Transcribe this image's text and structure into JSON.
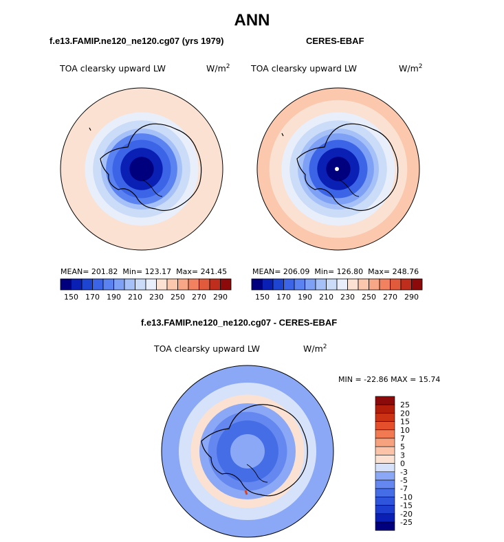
{
  "figure": {
    "title": "ANN",
    "panels": {
      "model": {
        "header": "f.e13.FAMIP.ne120_ne120.cg07 (yrs 1979)",
        "variable": "TOA clearsky upward LW",
        "units_base": "W/m",
        "units_exp": "2",
        "stats": {
          "mean_label": "MEAN=",
          "mean": "201.82",
          "min_label": "Min=",
          "min": "123.17",
          "max_label": "Max=",
          "max": "241.45"
        }
      },
      "obs": {
        "header": "CERES-EBAF",
        "variable": "TOA clearsky upward LW",
        "units_base": "W/m",
        "units_exp": "2",
        "stats": {
          "mean_label": "MEAN=",
          "mean": "206.09",
          "min_label": "Min=",
          "min": "126.80",
          "max_label": "Max=",
          "max": "248.76"
        }
      },
      "diff": {
        "header": "f.e13.FAMIP.ne120_ne120.cg07 - CERES-EBAF",
        "variable": "TOA clearsky upward LW",
        "units_base": "W/m",
        "units_exp": "2",
        "minmax": "MIN = -22.86 MAX =  15.74"
      }
    }
  },
  "chart_data": [
    {
      "type": "heatmap",
      "projection": "south polar stereographic",
      "title": "f.e13.FAMIP.ne120_ne120.cg07 (yrs 1979)",
      "variable": "TOA clearsky upward LW",
      "units": "W/m^2",
      "mean": 201.82,
      "min": 123.17,
      "max": 241.45,
      "colorbar_levels": [
        150,
        160,
        170,
        180,
        190,
        200,
        210,
        220,
        230,
        240,
        250,
        260,
        270,
        280,
        290
      ],
      "colorbar_tick_labels": [
        "150",
        "170",
        "190",
        "210",
        "230",
        "250",
        "270",
        "290"
      ],
      "colorbar_colors": [
        "#00007f",
        "#0a1fb4",
        "#1e44d2",
        "#3c64e6",
        "#5a82f0",
        "#7ea1f5",
        "#a6c1f8",
        "#cadcf8",
        "#e8eefa",
        "#fbe1d2",
        "#fbc7ad",
        "#f8a786",
        "#f2825f",
        "#e25a3c",
        "#bf2d1d",
        "#8c0a0a"
      ],
      "radial_profile": [
        {
          "r": 1.0,
          "value": 238
        },
        {
          "r": 0.85,
          "value": 232
        },
        {
          "r": 0.7,
          "value": 224
        },
        {
          "r": 0.6,
          "value": 214
        },
        {
          "r": 0.5,
          "value": 204
        },
        {
          "r": 0.44,
          "value": 188
        },
        {
          "r": 0.36,
          "value": 172
        },
        {
          "r": 0.26,
          "value": 155
        },
        {
          "r": 0.15,
          "value": 140
        }
      ]
    },
    {
      "type": "heatmap",
      "projection": "south polar stereographic",
      "title": "CERES-EBAF",
      "variable": "TOA clearsky upward LW",
      "units": "W/m^2",
      "mean": 206.09,
      "min": 126.8,
      "max": 248.76,
      "colorbar_levels": [
        150,
        160,
        170,
        180,
        190,
        200,
        210,
        220,
        230,
        240,
        250,
        260,
        270,
        280,
        290
      ],
      "colorbar_tick_labels": [
        "150",
        "170",
        "190",
        "210",
        "230",
        "250",
        "270",
        "290"
      ],
      "colorbar_colors": [
        "#00007f",
        "#0a1fb4",
        "#1e44d2",
        "#3c64e6",
        "#5a82f0",
        "#7ea1f5",
        "#a6c1f8",
        "#cadcf8",
        "#e8eefa",
        "#fbe1d2",
        "#fbc7ad",
        "#f8a786",
        "#f2825f",
        "#e25a3c",
        "#bf2d1d",
        "#8c0a0a"
      ],
      "radial_profile": [
        {
          "r": 1.0,
          "value": 244
        },
        {
          "r": 0.85,
          "value": 237
        },
        {
          "r": 0.7,
          "value": 227
        },
        {
          "r": 0.6,
          "value": 216
        },
        {
          "r": 0.5,
          "value": 206
        },
        {
          "r": 0.44,
          "value": 190
        },
        {
          "r": 0.36,
          "value": 174
        },
        {
          "r": 0.26,
          "value": 158
        },
        {
          "r": 0.15,
          "value": 142
        }
      ]
    },
    {
      "type": "heatmap",
      "projection": "south polar stereographic",
      "title": "f.e13.FAMIP.ne120_ne120.cg07 - CERES-EBAF",
      "variable": "TOA clearsky upward LW",
      "units": "W/m^2",
      "min": -22.86,
      "max": 15.74,
      "colorbar_levels": [
        -25,
        -20,
        -15,
        -10,
        -7,
        -5,
        -3,
        0,
        3,
        5,
        7,
        10,
        15,
        20,
        25
      ],
      "colorbar_tick_labels": [
        "-25",
        "-20",
        "-15",
        "-10",
        "-7",
        "-5",
        "-3",
        "0",
        "3",
        "5",
        "7",
        "10",
        "15",
        "20",
        "25"
      ],
      "colorbar_colors": [
        "#00007f",
        "#0a1fb4",
        "#1e3ed0",
        "#2e55dc",
        "#456ee6",
        "#6488ef",
        "#8aa8f5",
        "#d6e2fa",
        "#fbe1d2",
        "#fbc4a8",
        "#f7a27f",
        "#f17a52",
        "#e54f2c",
        "#cc3214",
        "#b21e0a",
        "#8c0a0a"
      ],
      "radial_profile": [
        {
          "r": 1.0,
          "value": -4
        },
        {
          "r": 0.8,
          "value": -2
        },
        {
          "r": 0.66,
          "value": 1
        },
        {
          "r": 0.56,
          "value": -4
        },
        {
          "r": 0.46,
          "value": -6
        },
        {
          "r": 0.36,
          "value": -10
        },
        {
          "r": 0.2,
          "value": -4
        }
      ]
    }
  ]
}
